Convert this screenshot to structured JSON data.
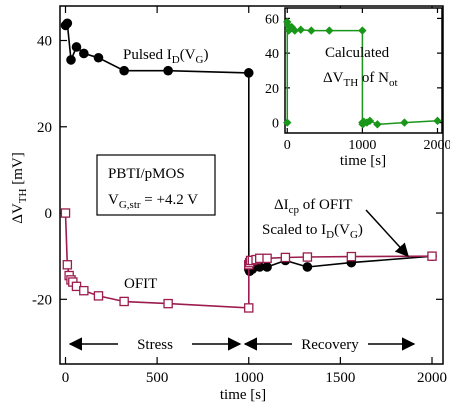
{
  "chart_data": [
    {
      "type": "line",
      "title": "",
      "xlabel": "time [s]",
      "ylabel_main": "ΔV",
      "ylabel_sub": "TH",
      "ylabel_unit": " [mV]",
      "xlim": [
        -30,
        2060
      ],
      "ylim": [
        -35,
        48
      ],
      "xticks": [
        0,
        500,
        1000,
        1500,
        2000
      ],
      "yticks": [
        -20,
        0,
        20,
        40
      ],
      "grid": false,
      "series": [
        {
          "name_main": "Pulsed I",
          "name_sub": "D",
          "name_tail": "(V",
          "name_sub2": "G",
          "name_end": ")",
          "color": "#000000",
          "marker": "filled-circle",
          "x": [
            0,
            10,
            30,
            60,
            100,
            180,
            320,
            560,
            1000,
            1000,
            1005,
            1020,
            1060,
            1100,
            1200,
            1320,
            1560,
            2000
          ],
          "y": [
            43.5,
            44,
            35.5,
            38.5,
            37,
            36,
            33,
            33,
            32.5,
            -13,
            -13.5,
            -13,
            -12.5,
            -12.5,
            -11,
            -12.5,
            -11.5,
            -10
          ]
        },
        {
          "name": "OFIT",
          "color": "#9c1c4e",
          "marker": "open-square",
          "x": [
            0,
            10,
            20,
            30,
            40,
            60,
            100,
            180,
            320,
            560,
            1000,
            1000,
            1005,
            1010,
            1020,
            1040,
            1060,
            1100,
            1200,
            1320,
            1560,
            2000
          ],
          "y": [
            0,
            -12,
            -14.5,
            -15.5,
            -16,
            -17,
            -18,
            -19.2,
            -20.5,
            -21,
            -22,
            -12,
            -11.5,
            -11,
            -11,
            -10.8,
            -10.5,
            -10.5,
            -10.3,
            -10.2,
            -10.1,
            -10
          ]
        }
      ],
      "annotations": {
        "box_line1": "PBTI/pMOS",
        "box_line2_main": "V",
        "box_line2_sub": "G,str",
        "box_line2_tail": " = +4.2 V",
        "delta_line1_main": "ΔI",
        "delta_line1_sub": "cp",
        "delta_line1_tail": " of OFIT",
        "delta_line2_main": "Scaled to I",
        "delta_line2_sub": "D",
        "delta_line2_tail": "(V",
        "delta_line2_sub2": "G",
        "delta_line2_end": ")",
        "stress_label": "Stress",
        "recovery_label": "Recovery"
      }
    },
    {
      "type": "line",
      "title_line1": "Calculated",
      "title_line2_main": "ΔV",
      "title_line2_sub": "TH",
      "title_line2_tail": " of N",
      "title_line2_sub2": "ot",
      "xlabel": "time [s]",
      "xlim": [
        -30,
        2060
      ],
      "ylim": [
        -6,
        66
      ],
      "xticks": [
        0,
        1000,
        2000
      ],
      "yticks": [
        0,
        20,
        40,
        60
      ],
      "series": [
        {
          "name": "",
          "color": "#1a961a",
          "marker": "filled-diamond",
          "x": [
            0,
            0,
            10,
            20,
            30,
            40,
            60,
            100,
            180,
            320,
            560,
            1000,
            1000,
            1005,
            1010,
            1020,
            1060,
            1100,
            1200,
            1560,
            2000
          ],
          "y": [
            0,
            58,
            56,
            53,
            55,
            54,
            55,
            53,
            53.5,
            53,
            53,
            53,
            0,
            -1,
            0,
            0.5,
            0,
            1,
            -1,
            0,
            1
          ]
        }
      ]
    }
  ]
}
